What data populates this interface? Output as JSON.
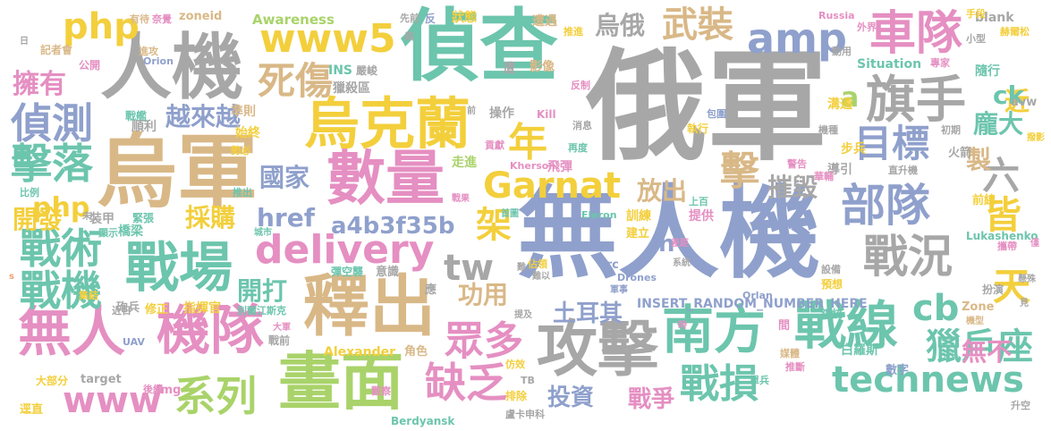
{
  "palette": {
    "gray": "#a7a7a7",
    "tan": "#d9b887",
    "blue": "#8fa0cc",
    "green": "#a9d36a",
    "pink": "#e58fc2",
    "yellow": "#f3cf3c",
    "teal": "#6cc5ad",
    "orange": "#f49f72"
  },
  "words": [
    {
      "text": "俄軍",
      "color": "gray"
    },
    {
      "text": "無人機",
      "color": "blue"
    },
    {
      "text": "偵查",
      "color": "teal"
    },
    {
      "text": "烏軍",
      "color": "tan"
    },
    {
      "text": "人機",
      "color": "gray"
    },
    {
      "text": "數量",
      "color": "pink"
    },
    {
      "text": "烏克蘭",
      "color": "yellow"
    },
    {
      "text": "釋出",
      "color": "tan"
    },
    {
      "text": "攻擊",
      "color": "gray"
    },
    {
      "text": "畫面",
      "color": "green"
    },
    {
      "text": "南方",
      "color": "teal"
    },
    {
      "text": "戰線",
      "color": "teal"
    },
    {
      "text": "無人",
      "color": "pink"
    },
    {
      "text": "機隊",
      "color": "pink"
    },
    {
      "text": "戰場",
      "color": "teal"
    },
    {
      "text": "delivery",
      "color": "pink"
    },
    {
      "text": "Garnat",
      "color": "yellow"
    },
    {
      "text": "technews",
      "color": "teal"
    },
    {
      "text": "www",
      "color": "pink"
    },
    {
      "text": "www5",
      "color": "yellow"
    },
    {
      "text": "amp",
      "color": "blue"
    },
    {
      "text": "旗手",
      "color": "gray"
    },
    {
      "text": "車隊",
      "color": "pink"
    },
    {
      "text": "部隊",
      "color": "blue"
    },
    {
      "text": "戰況",
      "color": "gray"
    },
    {
      "text": "目標",
      "color": "blue"
    },
    {
      "text": "偵測",
      "color": "blue"
    },
    {
      "text": "擊落",
      "color": "teal"
    },
    {
      "text": "戰術",
      "color": "teal"
    },
    {
      "text": "戰機",
      "color": "teal"
    },
    {
      "text": "系列",
      "color": "green"
    },
    {
      "text": "戰損",
      "color": "teal"
    },
    {
      "text": "獵戶座",
      "color": "teal"
    },
    {
      "text": "死傷",
      "color": "tan"
    },
    {
      "text": "武裝",
      "color": "tan"
    },
    {
      "text": "php",
      "color": "yellow"
    },
    {
      "text": "cb",
      "color": "teal"
    },
    {
      "text": "a4b3f35b",
      "color": "blue"
    },
    {
      "text": "缺乏",
      "color": "pink"
    },
    {
      "text": "眾多",
      "color": "pink"
    },
    {
      "text": "tw",
      "color": "gray"
    },
    {
      "text": "href",
      "color": "blue"
    },
    {
      "text": "架",
      "color": "yellow"
    },
    {
      "text": "年",
      "color": "yellow"
    },
    {
      "text": "擊",
      "color": "tan"
    },
    {
      "text": "六",
      "color": "gray"
    },
    {
      "text": "皆",
      "color": "yellow"
    },
    {
      "text": "天",
      "color": "yellow"
    },
    {
      "text": "製",
      "color": "tan"
    },
    {
      "text": "擁有",
      "color": "pink"
    },
    {
      "text": "越來越",
      "color": "blue"
    },
    {
      "text": "國家",
      "color": "blue"
    },
    {
      "text": "放出",
      "color": "tan"
    },
    {
      "text": "摧毀",
      "color": "gray"
    },
    {
      "text": "開發",
      "color": "yellow"
    },
    {
      "text": "採購",
      "color": "yellow"
    },
    {
      "text": "開打",
      "color": "teal"
    },
    {
      "text": "土耳其",
      "color": "blue"
    },
    {
      "text": "功用",
      "color": "tan"
    },
    {
      "text": "投資",
      "color": "blue"
    },
    {
      "text": "戰爭",
      "color": "pink"
    },
    {
      "text": "無不",
      "color": "pink"
    },
    {
      "text": "烏俄",
      "color": "gray"
    },
    {
      "text": "近",
      "color": "yellow"
    },
    {
      "text": "龐大",
      "color": "teal"
    },
    {
      "text": "ck",
      "color": "teal"
    },
    {
      "text": "a",
      "color": "green"
    },
    {
      "text": "n",
      "color": "blue"
    },
    {
      "text": "INSERT_RANDOM_NUMBER_HERE",
      "color": "blue"
    },
    {
      "text": "Awareness",
      "color": "green"
    },
    {
      "text": "Situation",
      "color": "teal"
    },
    {
      "text": "Lukashenko",
      "color": "teal"
    },
    {
      "text": "Alexander",
      "color": "yellow"
    },
    {
      "text": "Berdyansk",
      "color": "teal"
    },
    {
      "text": "Kherson",
      "color": "pink"
    },
    {
      "text": "Eleron",
      "color": "teal"
    },
    {
      "text": "Drones",
      "color": "blue"
    },
    {
      "text": "Orlan",
      "color": "blue"
    },
    {
      "text": "Orion",
      "color": "blue"
    },
    {
      "text": "Russia",
      "color": "pink"
    },
    {
      "text": "Kill",
      "color": "pink"
    },
    {
      "text": "Zone",
      "color": "tan"
    },
    {
      "text": "zoneid",
      "color": "tan"
    },
    {
      "text": "target",
      "color": "gray"
    },
    {
      "text": "blank",
      "color": "gray"
    },
    {
      "text": "INS",
      "color": "teal"
    },
    {
      "text": "src",
      "color": "blue"
    },
    {
      "text": "img",
      "color": "pink"
    },
    {
      "text": "UAV",
      "color": "blue"
    },
    {
      "text": "avw",
      "color": "gray"
    },
    {
      "text": "狀態",
      "color": "yellow"
    },
    {
      "text": "遭遇",
      "color": "tan"
    },
    {
      "text": "影像",
      "color": "tan"
    },
    {
      "text": "遭",
      "color": "gray"
    },
    {
      "text": "嚴峻",
      "color": "gray"
    },
    {
      "text": "獵殺區",
      "color": "gray"
    },
    {
      "text": "準則",
      "color": "tan"
    },
    {
      "text": "操作",
      "color": "gray"
    },
    {
      "text": "始終",
      "color": "yellow"
    },
    {
      "text": "戰艦",
      "color": "teal"
    },
    {
      "text": "順利",
      "color": "gray"
    },
    {
      "text": "隨行",
      "color": "teal"
    },
    {
      "text": "溝通",
      "color": "yellow"
    },
    {
      "text": "執行",
      "color": "yellow"
    },
    {
      "text": "步兵",
      "color": "yellow"
    },
    {
      "text": "導引",
      "color": "gray"
    },
    {
      "text": "火箭",
      "color": "gray"
    },
    {
      "text": "直升機",
      "color": "gray"
    },
    {
      "text": "飛彈",
      "color": "pink"
    },
    {
      "text": "走進",
      "color": "green"
    },
    {
      "text": "公開",
      "color": "pink"
    },
    {
      "text": "進攻",
      "color": "tan"
    },
    {
      "text": "記者會",
      "color": "tan"
    },
    {
      "text": "有待",
      "color": "tan"
    },
    {
      "text": "奈覺",
      "color": "pink"
    },
    {
      "text": "先前",
      "color": "gray"
    },
    {
      "text": "扁",
      "color": "gray"
    },
    {
      "text": "反",
      "color": "blue"
    },
    {
      "text": "手段",
      "color": "yellow"
    },
    {
      "text": "外界",
      "color": "pink"
    },
    {
      "text": "小型",
      "color": "gray"
    },
    {
      "text": "赫爾松",
      "color": "yellow"
    },
    {
      "text": "專家",
      "color": "pink"
    },
    {
      "text": "動用",
      "color": "gray"
    },
    {
      "text": "初期",
      "color": "gray"
    },
    {
      "text": "撥影",
      "color": "yellow"
    },
    {
      "text": "前線",
      "color": "yellow"
    },
    {
      "text": "建立",
      "color": "yellow"
    },
    {
      "text": "提供",
      "color": "pink"
    },
    {
      "text": "訓練",
      "color": "yellow"
    },
    {
      "text": "上百",
      "color": "teal"
    },
    {
      "text": "裝甲",
      "color": "gray"
    },
    {
      "text": "緊張",
      "color": "teal"
    },
    {
      "text": "橋梁",
      "color": "teal"
    },
    {
      "text": "戰前",
      "color": "gray"
    },
    {
      "text": "城市",
      "color": "teal"
    },
    {
      "text": "指揮官",
      "color": "yellow"
    },
    {
      "text": "別爾江斯克",
      "color": "teal"
    },
    {
      "text": "修正",
      "color": "yellow"
    },
    {
      "text": "砲兵",
      "color": "gray"
    },
    {
      "text": "彈空襲",
      "color": "teal"
    },
    {
      "text": "意識",
      "color": "gray"
    },
    {
      "text": "預想",
      "color": "yellow"
    },
    {
      "text": "扮演",
      "color": "gray"
    },
    {
      "text": "總統",
      "color": "teal"
    },
    {
      "text": "角色",
      "color": "tan"
    },
    {
      "text": "仿效",
      "color": "yellow"
    },
    {
      "text": "排除",
      "color": "yellow"
    },
    {
      "text": "觀察",
      "color": "pink"
    },
    {
      "text": "盧卡申科",
      "color": "gray"
    },
    {
      "text": "白羅斯",
      "color": "teal"
    },
    {
      "text": "數字",
      "color": "blue"
    },
    {
      "text": "單兵",
      "color": "teal"
    },
    {
      "text": "推斷",
      "color": "pink"
    },
    {
      "text": "媒體",
      "color": "tan"
    },
    {
      "text": "大部分",
      "color": "yellow"
    },
    {
      "text": "逕直",
      "color": "yellow"
    },
    {
      "text": "後續",
      "color": "pink"
    },
    {
      "text": "集結",
      "color": "yellow"
    },
    {
      "text": "近日",
      "color": "gray"
    },
    {
      "text": "顯示",
      "color": "teal"
    },
    {
      "text": "比例",
      "color": "teal"
    },
    {
      "text": "推出",
      "color": "teal"
    },
    {
      "text": "勢必",
      "color": "yellow"
    },
    {
      "text": "貢獻",
      "color": "pink"
    },
    {
      "text": "再度",
      "color": "teal"
    },
    {
      "text": "消息",
      "color": "gray"
    },
    {
      "text": "包圍",
      "color": "blue"
    },
    {
      "text": "機種",
      "color": "gray"
    },
    {
      "text": "警告",
      "color": "pink"
    },
    {
      "text": "華輔",
      "color": "pink"
    },
    {
      "text": "攜帶",
      "color": "pink"
    },
    {
      "text": "差距",
      "color": "pink"
    },
    {
      "text": "系統",
      "color": "gray"
    },
    {
      "text": "軍事",
      "color": "blue"
    },
    {
      "text": "佔領",
      "color": "yellow"
    },
    {
      "text": "難以",
      "color": "gray"
    },
    {
      "text": "應",
      "color": "gray"
    },
    {
      "text": "提及",
      "color": "gray"
    },
    {
      "text": "首圖",
      "color": "teal"
    },
    {
      "text": "戰果",
      "color": "pink"
    },
    {
      "text": "推進",
      "color": "yellow"
    },
    {
      "text": "反制",
      "color": "pink"
    },
    {
      "text": "升空",
      "color": "gray"
    },
    {
      "text": "機型",
      "color": "tan"
    },
    {
      "text": "懸殊",
      "color": "gray"
    },
    {
      "text": "見",
      "color": "gray"
    },
    {
      "text": "僅",
      "color": "pink"
    },
    {
      "text": "間",
      "color": "pink"
    },
    {
      "text": "時",
      "color": "pink"
    },
    {
      "text": "大軍",
      "color": "pink"
    },
    {
      "text": "前",
      "color": "gray"
    },
    {
      "text": "未",
      "color": "gray"
    },
    {
      "text": "日",
      "color": "gray"
    },
    {
      "text": "s",
      "color": "orange"
    },
    {
      "text": "難",
      "color": "gray"
    },
    {
      "text": "TB",
      "color": "gray"
    },
    {
      "text": "設備",
      "color": "gray"
    }
  ]
}
